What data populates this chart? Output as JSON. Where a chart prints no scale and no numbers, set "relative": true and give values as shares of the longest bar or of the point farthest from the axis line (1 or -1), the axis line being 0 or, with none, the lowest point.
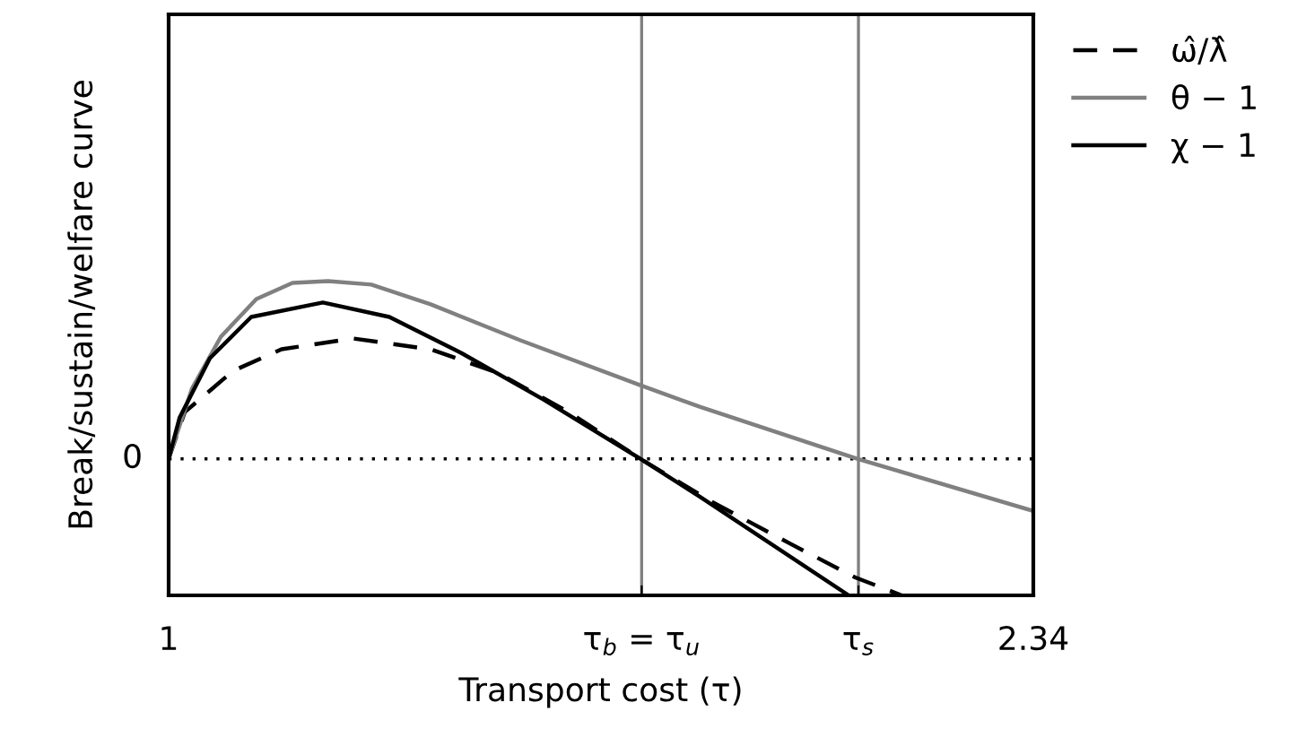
{
  "chart_data": {
    "type": "line",
    "relative": true,
    "xlabel": "Transport cost (τ)",
    "ylabel": "Break/sustain/welfare curve",
    "xlim": [
      1,
      2.34
    ],
    "xticks": [
      1,
      {
        "value": 1.733,
        "label": "τ$_{b}$ = τ$_{u}$"
      },
      {
        "value": 2.069,
        "label": "τ$_{s}$"
      },
      2.34
    ],
    "grid": false,
    "legend": "top right",
    "marker": "none",
    "ref_lines": [
      {
        "axis": "y",
        "value": 0,
        "label": "0",
        "color": "#000000",
        "line_style": "dotted"
      },
      {
        "axis": "x",
        "value": 1.733,
        "color": "#808080",
        "line_style": "solid"
      },
      {
        "axis": "x",
        "value": 2.069,
        "color": "#808080",
        "line_style": "solid"
      }
    ],
    "series": [
      {
        "name": "ω̂/λ̂",
        "color": "#000000",
        "line_style": "dashed",
        "x": [
          1,
          1.025,
          1.1,
          1.175,
          1.286,
          1.406,
          1.509,
          1.62,
          1.731,
          1.842,
          1.962,
          2.064,
          2.136
        ],
        "values": [
          0,
          0.263,
          0.495,
          0.616,
          0.677,
          0.616,
          0.485,
          0.263,
          0,
          -0.242,
          -0.475,
          -0.667,
          -0.768
        ]
      },
      {
        "name": "θ − 1",
        "color": "#808080",
        "line_style": "solid",
        "x": [
          1,
          1.036,
          1.081,
          1.136,
          1.192,
          1.247,
          1.314,
          1.406,
          1.545,
          1.731,
          1.823,
          2.067,
          2.34
        ],
        "values": [
          0,
          0.394,
          0.687,
          0.899,
          0.99,
          1.0,
          0.98,
          0.869,
          0.667,
          0.414,
          0.293,
          0,
          -0.293
        ]
      },
      {
        "name": "χ − 1",
        "color": "#000000",
        "line_style": "solid",
        "x": [
          1,
          1.017,
          1.064,
          1.128,
          1.239,
          1.342,
          1.453,
          1.581,
          1.731,
          1.823,
          2.054
        ],
        "values": [
          0,
          0.232,
          0.566,
          0.798,
          0.879,
          0.798,
          0.596,
          0.333,
          0,
          -0.212,
          -0.768
        ]
      }
    ]
  }
}
